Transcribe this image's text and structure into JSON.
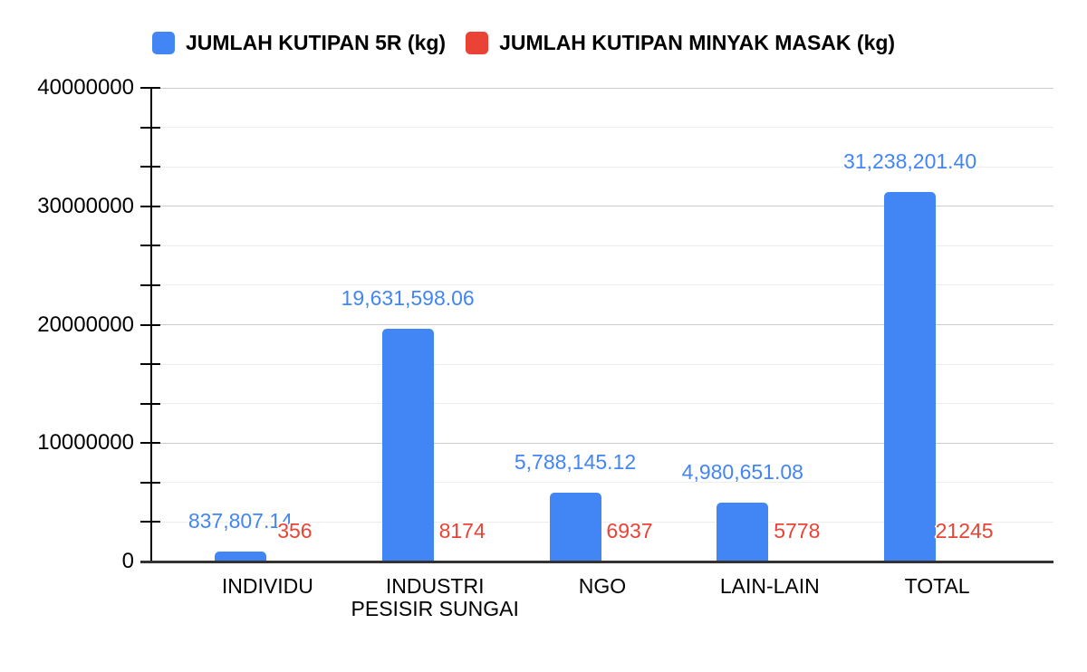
{
  "legend": {
    "items": [
      {
        "label": "JUMLAH KUTIPAN 5R (kg)",
        "color": "#4285F4",
        "swatch_icon": "blue-square-icon"
      },
      {
        "label": "JUMLAH KUTIPAN MINYAK MASAK (kg)",
        "color": "#EA4335",
        "swatch_icon": "red-square-icon"
      }
    ]
  },
  "chart_data": {
    "type": "bar",
    "title": "",
    "xlabel": "",
    "ylabel": "",
    "categories": [
      "INDIVIDU",
      "INDUSTRI PESISIR SUNGAI",
      "NGO",
      "LAIN-LAIN",
      "TOTAL"
    ],
    "series": [
      {
        "name": "JUMLAH KUTIPAN 5R (kg)",
        "color": "#4285F4",
        "values": [
          837807.14,
          19631598.06,
          5788145.12,
          4980651.08,
          31238201.4
        ],
        "data_labels": [
          "837,807.14",
          "19,631,598.06",
          "5,788,145.12",
          "4,980,651.08",
          "31,238,201.40"
        ]
      },
      {
        "name": "JUMLAH KUTIPAN MINYAK MASAK (kg)",
        "color": "#EA4335",
        "values": [
          356,
          8174,
          6937,
          5778,
          21245
        ],
        "data_labels": [
          "356",
          "8174",
          "6937",
          "5778",
          "21245"
        ]
      }
    ],
    "y_axis": {
      "min": 0,
      "max": 40000000,
      "major_ticks": [
        0,
        10000000,
        20000000,
        30000000,
        40000000
      ],
      "major_tick_labels": [
        "0",
        "10000000",
        "20000000",
        "30000000",
        "40000000"
      ],
      "minor_gridlines_per_major_interval": 2
    },
    "grid": true,
    "legend_position": "top",
    "colors": {
      "major_gridline": "#cccccc",
      "minor_gridline": "#ededed",
      "x_axis_line": "#333333",
      "y_axis_line": "#000000",
      "tick_text": "#000000"
    }
  }
}
